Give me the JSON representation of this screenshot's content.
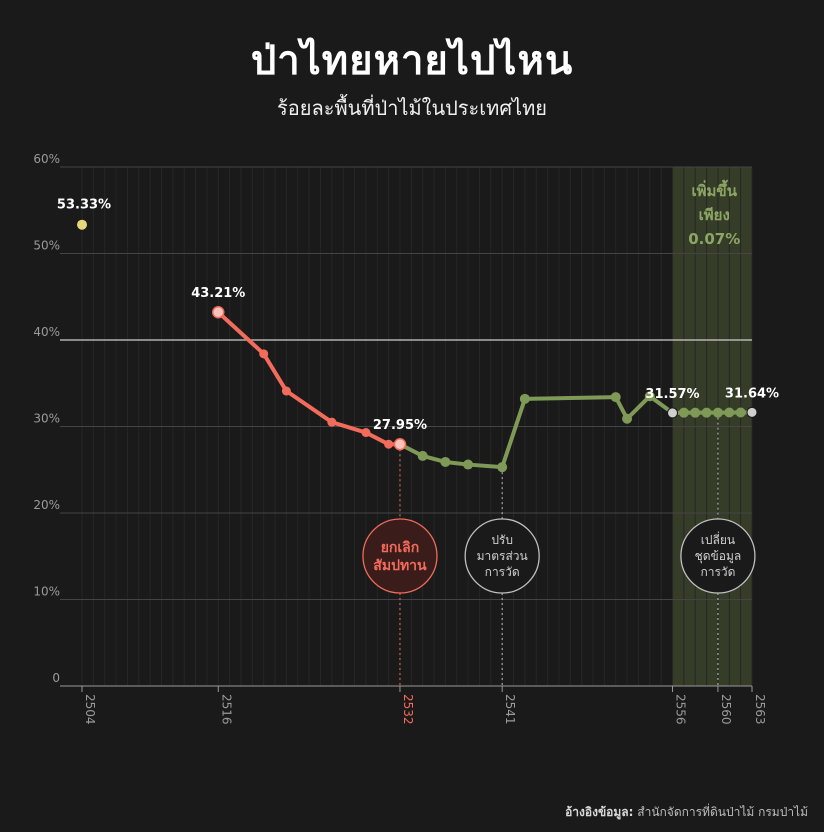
{
  "header": {
    "title": "ป่าไทยหายไปไหน",
    "subtitle": "ร้อยละพื้นที่ป่าไม้ในประเทศไทย"
  },
  "source": {
    "label": "อ้างอิงข้อมูล:",
    "text": "สำนักจัดการที่ดินป่าไม้ กรมป่าไม้"
  },
  "colors": {
    "background": "#1a1a1a",
    "decline": "#f26b5b",
    "recovery": "#7f9a56",
    "first_point": "#e6d77a",
    "shade": "#3f4a2e",
    "grid": "#444444"
  },
  "chart_data": {
    "type": "line",
    "title": "ร้อยละพื้นที่ป่าไม้ในประเทศไทย",
    "xlabel": "",
    "ylabel": "",
    "xlim": [
      2504,
      2563
    ],
    "ylim": [
      0,
      60
    ],
    "yticks": [
      0,
      10,
      20,
      30,
      40,
      50,
      60
    ],
    "ytick_labels": [
      "0",
      "10%",
      "20%",
      "30%",
      "40%",
      "50%",
      "60%"
    ],
    "xticks": [
      2504,
      2516,
      2532,
      2541,
      2556,
      2560,
      2563
    ],
    "xtick_labels": [
      "2504",
      "2516",
      "2532",
      "2541",
      "2556",
      "2560",
      "2563"
    ],
    "highlight_xtick": "2532",
    "grid": true,
    "first_point": {
      "x": 2504,
      "y": 53.33,
      "label": "53.33%"
    },
    "series": [
      {
        "x": [
          2516,
          2520,
          2522,
          2526,
          2529,
          2531,
          2532
        ],
        "values": [
          43.21,
          38.4,
          34.1,
          30.5,
          29.3,
          27.95,
          27.95
        ]
      },
      {
        "x": [
          2532,
          2534,
          2536,
          2538,
          2541,
          2543,
          2551,
          2552,
          2554,
          2556,
          2557,
          2558,
          2559,
          2560,
          2561,
          2562,
          2563
        ],
        "values": [
          27.95,
          26.6,
          25.9,
          25.6,
          25.3,
          33.2,
          33.4,
          30.9,
          33.5,
          31.57,
          31.6,
          31.6,
          31.6,
          31.6,
          31.62,
          31.62,
          31.64
        ]
      }
    ],
    "point_labels": [
      {
        "x": 2516,
        "y": 43.21,
        "text": "43.21%"
      },
      {
        "x": 2532,
        "y": 27.95,
        "text": "27.95%"
      },
      {
        "x": 2556,
        "y": 31.57,
        "text": "31.57%"
      },
      {
        "x": 2563,
        "y": 31.64,
        "text": "31.64%"
      }
    ],
    "annotations": [
      {
        "x": 2532,
        "lines": [
          "ยกเลิก",
          "สัมปทาน"
        ],
        "style": "decline"
      },
      {
        "x": 2541,
        "lines": [
          "ปรับ",
          "มาตรส่วน",
          "การวัด"
        ],
        "style": "neutral"
      },
      {
        "x": 2560,
        "lines": [
          "เปลี่ยน",
          "ชุดข้อมูล",
          "การวัด"
        ],
        "style": "neutral"
      }
    ],
    "shaded_region": {
      "x_from": 2556,
      "x_to": 2563,
      "lines": [
        "เพิ่มขึ้น",
        "เพียง",
        "0.07%"
      ]
    }
  }
}
